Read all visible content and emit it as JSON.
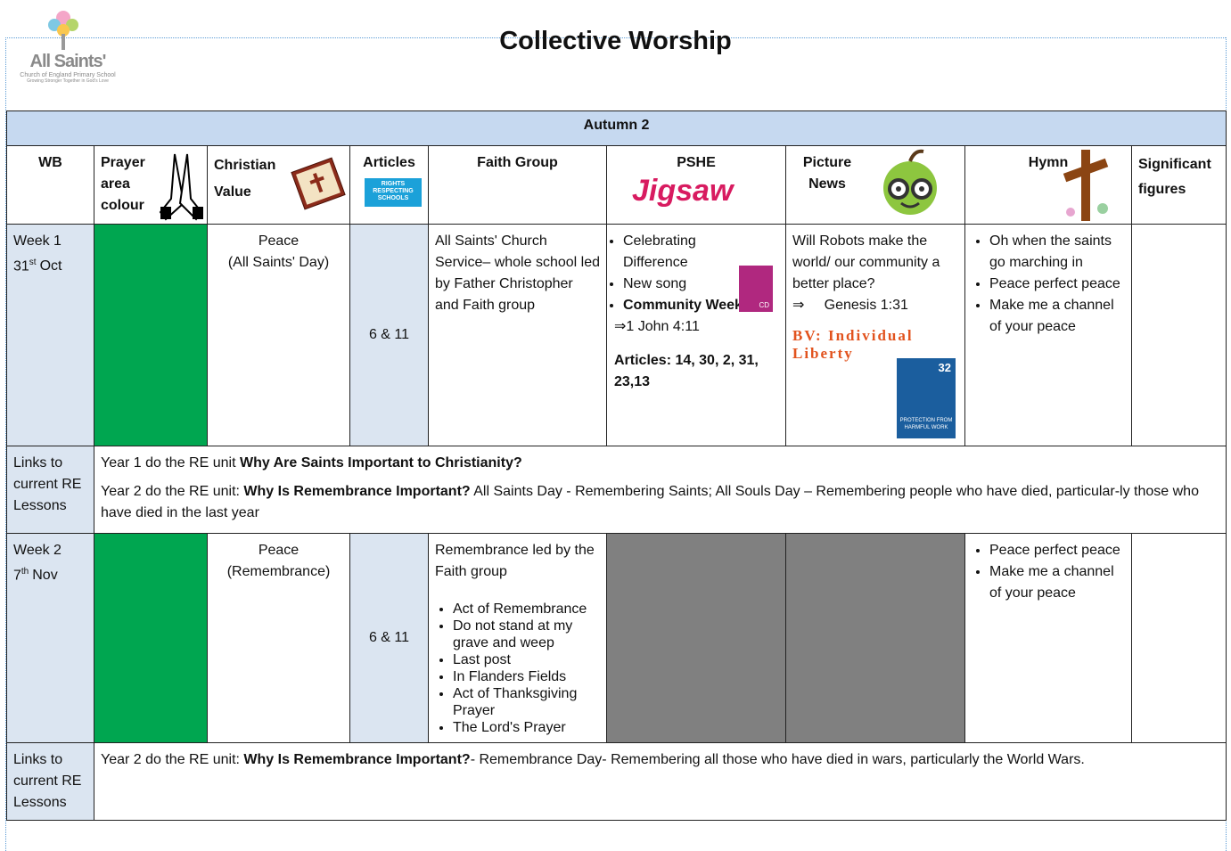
{
  "header": {
    "logo_name": "All Saints'",
    "logo_sub": "Church of England Primary School",
    "logo_motto": "Growing Stronger Together in God's Love",
    "title": "Collective Worship"
  },
  "table": {
    "term": "Autumn 2",
    "columns": [
      "WB",
      "Prayer area colour",
      "Christian Value",
      "Articles",
      "Faith Group",
      "PSHE",
      "Picture News",
      "Hymn",
      "Significant figures"
    ],
    "articles_badge": "RIGHTS RESPECTING SCHOOLS",
    "pshe_logo": "Jigsaw",
    "links_label": "Links to current RE Lessons",
    "weeks": [
      {
        "label": "Week 1",
        "day": "31",
        "suffix": "st",
        "month": "Oct",
        "prayer_colour": "#00a650",
        "value": "Peace",
        "value_note": "(All Saints' Day)",
        "articles": "6 & 11",
        "faith_group": {
          "text": "All Saints' Church Service– whole school led by Father Christopher and Faith group"
        },
        "pshe": {
          "items": [
            {
              "text": "Celebrating Difference"
            },
            {
              "text": "New song"
            },
            {
              "text": "Community Week",
              "bold": true
            }
          ],
          "verse": "⇒1 John 4:11",
          "articles": "Articles: 14, 30, 2, 31, 23,13",
          "cd": "CD"
        },
        "picture_news": {
          "question": "Will Robots make the world/ our community a better place?",
          "verse": "⇒     Genesis 1:31",
          "value": "BV: Individual Liberty",
          "badge_number": "32",
          "badge_text": "PROTECTION FROM HARMFUL WORK"
        },
        "hymns": [
          "Oh when the saints go marching in",
          "Peace perfect peace",
          "Make me a channel of your peace"
        ],
        "links": [
          [
            {
              "text": "Year 1 do the RE unit "
            },
            {
              "text": "Why Are Saints Important to Christianity?",
              "bold": true
            }
          ],
          [
            {
              "text": "Year 2 do the RE unit: "
            },
            {
              "text": "Why Is Remembrance Important?",
              "bold": true
            },
            {
              "text": " All Saints Day - Remembering Saints; All Souls Day – Remembering people who have died, particular-ly those who have died in the last year"
            }
          ]
        ]
      },
      {
        "label": "Week 2",
        "day": "7",
        "suffix": "th",
        "month": "Nov",
        "prayer_colour": "#00a650",
        "value": "Peace",
        "value_note": "(Remembrance)",
        "articles": "6 & 11",
        "faith_group": {
          "text": "Remembrance led by the Faith group",
          "items": [
            "Act of Remembrance",
            "Do not stand at my grave and weep",
            "Last post",
            "In Flanders Fields",
            "Act of Thanksgiving Prayer",
            "The Lord's Prayer"
          ]
        },
        "pshe_fill": "#808080",
        "picture_fill": "#808080",
        "hymns": [
          "Peace perfect peace",
          "Make me a channel of your peace"
        ],
        "links": [
          [
            {
              "text": "Year 2 do the RE unit: "
            },
            {
              "text": "Why Is Remembrance Important?",
              "bold": true
            },
            {
              "text": "- Remembrance Day- Remembering all those who have died in wars, particularly the World Wars."
            }
          ]
        ]
      }
    ]
  }
}
